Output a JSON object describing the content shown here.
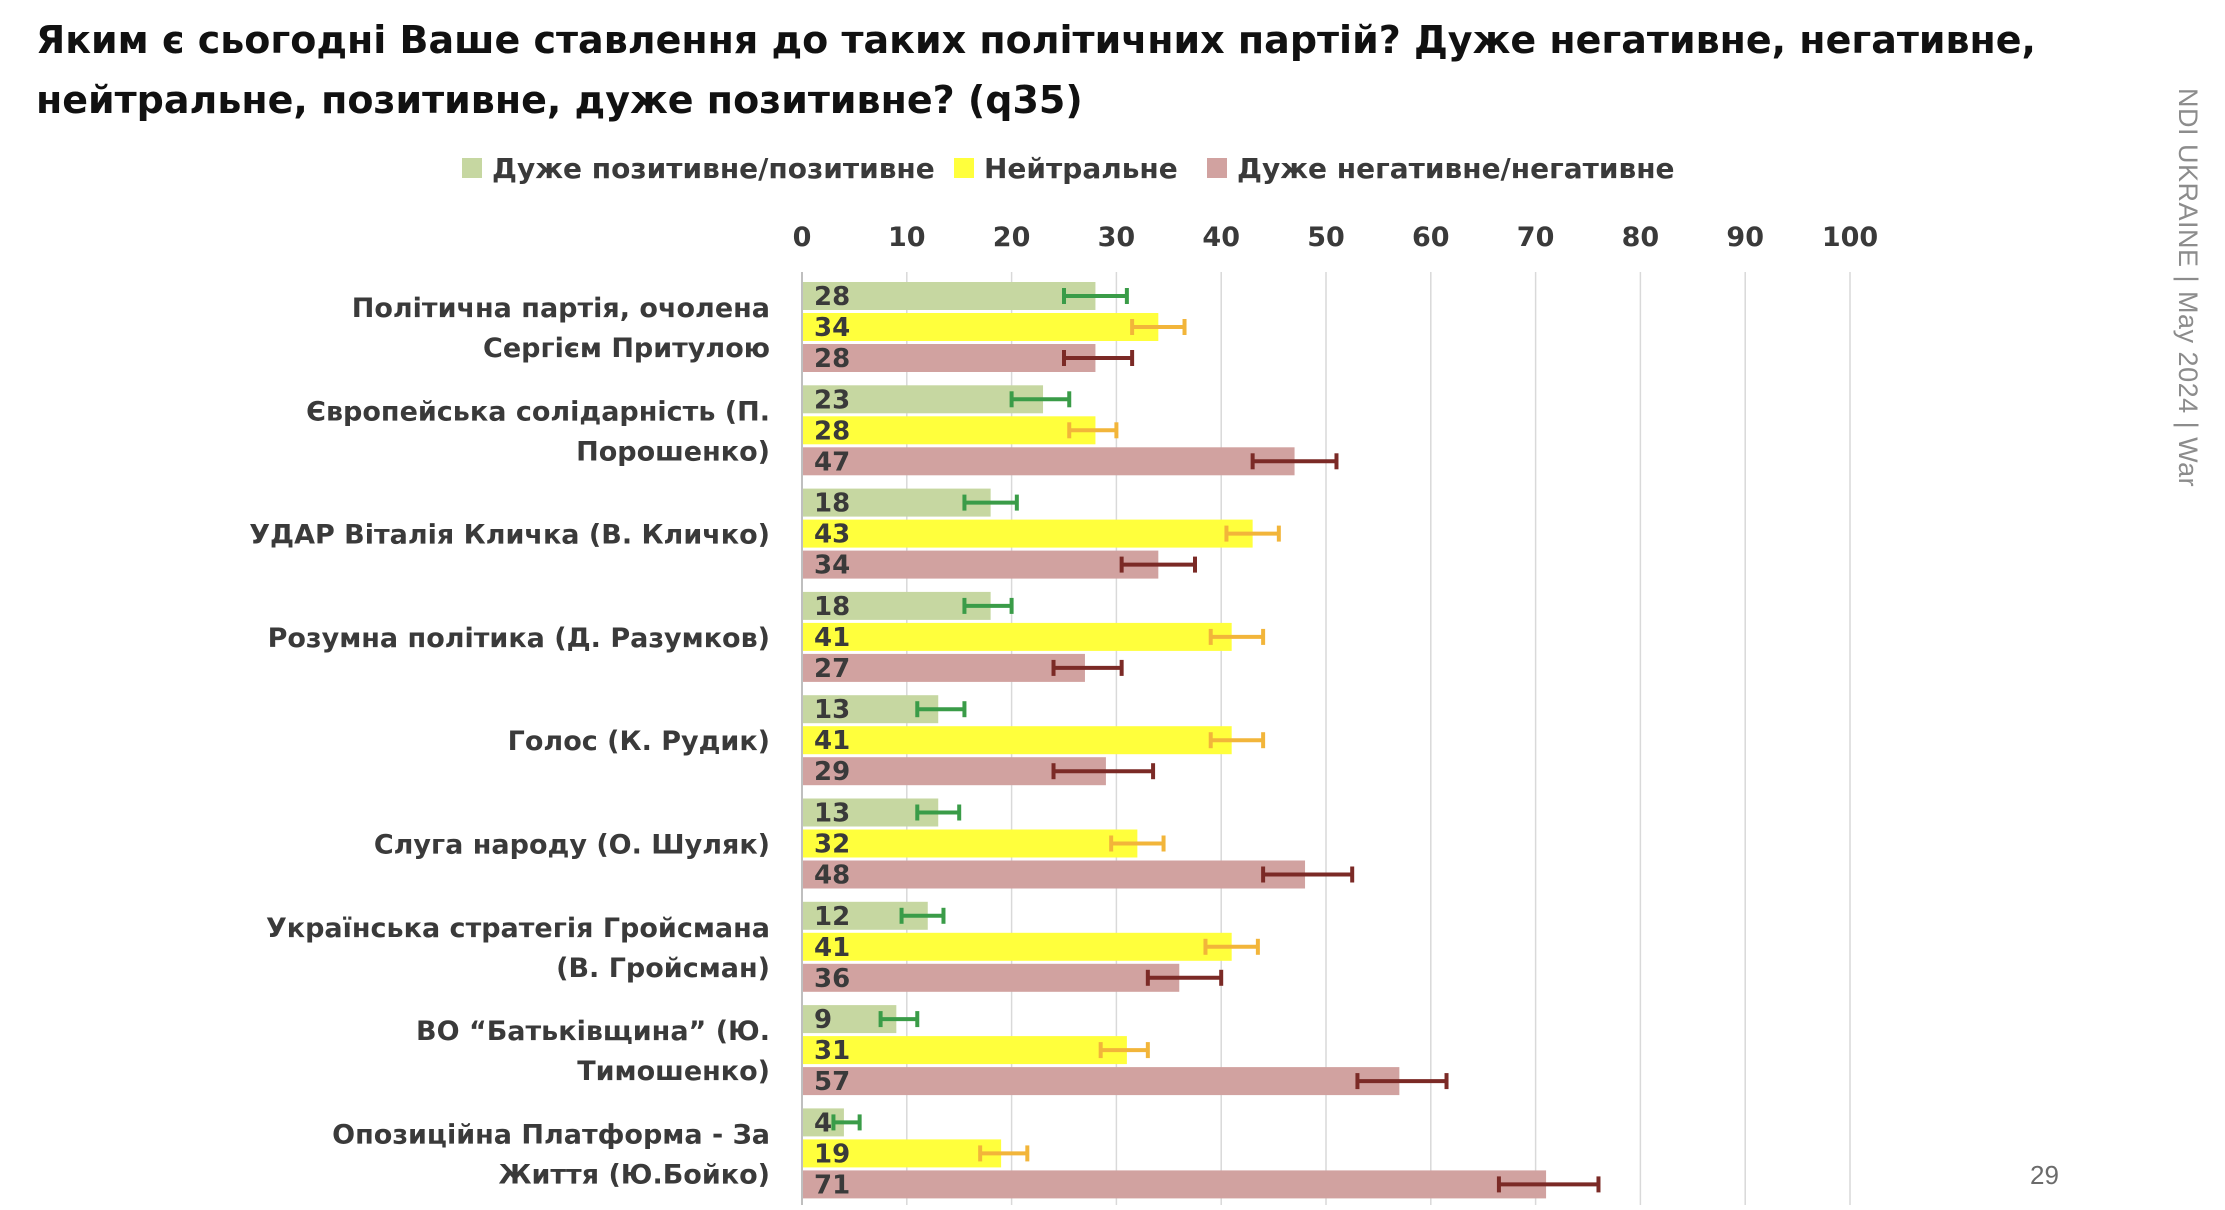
{
  "title_line1": "Яким є сьогодні Ваше ставлення до таких політичних партій? Дуже негативне, негативне,",
  "title_line2": "нейтральне, позитивне, дуже позитивне? (q35)",
  "side_note": "NDI UKRAINE | May 2024 | War",
  "page_number": "29",
  "chart_data": {
    "type": "bar",
    "orientation": "horizontal",
    "title": "",
    "xlabel": "",
    "ylabel": "",
    "xlim": [
      0,
      100
    ],
    "ticks": [
      "0",
      "10",
      "20",
      "30",
      "40",
      "50",
      "60",
      "70",
      "80",
      "90",
      "100"
    ],
    "tick_values": [
      0,
      10,
      20,
      30,
      40,
      50,
      60,
      70,
      80,
      90,
      100
    ],
    "grid": true,
    "legend_position": "top",
    "categories": [
      [
        "Політична партія, очолена",
        "Сергієм Притулою"
      ],
      [
        "Європейська солідарність (П.",
        "Порошенко)"
      ],
      [
        "УДАР Віталія Кличка (В. Кличко)"
      ],
      [
        "Розумна політика (Д. Разумков)"
      ],
      [
        "Голос (К. Рудик)"
      ],
      [
        "Слуга народу (О. Шуляк)"
      ],
      [
        "Українська стратегія Гройсмана",
        "(В. Гройсман)"
      ],
      [
        "ВО “Батьківщина” (Ю.",
        "Тимошенко)"
      ],
      [
        "Опозиційна Платформа - За",
        "Життя (Ю.Бойко)"
      ]
    ],
    "series": [
      {
        "name": "Дуже позитивне/позитивне",
        "color": "#c6d7a1",
        "error_color": "#3a9c48",
        "values": [
          28,
          23,
          18,
          18,
          13,
          13,
          12,
          9,
          4
        ],
        "labels": [
          "28",
          "23",
          "18",
          "18",
          "13",
          "13",
          "12",
          "9",
          "4"
        ],
        "error_ranges": [
          [
            25,
            31
          ],
          [
            20,
            25.5
          ],
          [
            15.5,
            20.5
          ],
          [
            15.5,
            20
          ],
          [
            11,
            15.5
          ],
          [
            11,
            15
          ],
          [
            9.5,
            13.5
          ],
          [
            7.5,
            11
          ],
          [
            3,
            5.5
          ]
        ]
      },
      {
        "name": "Нейтральне",
        "color": "#ffff3c",
        "error_color": "#f2b53a",
        "values": [
          34,
          28,
          43,
          41,
          41,
          32,
          41,
          31,
          19
        ],
        "labels": [
          "34",
          "28",
          "43",
          "41",
          "41",
          "32",
          "41",
          "31",
          "19"
        ],
        "error_ranges": [
          [
            31.5,
            36.5
          ],
          [
            25.5,
            30
          ],
          [
            40.5,
            45.5
          ],
          [
            39,
            44
          ],
          [
            39,
            44
          ],
          [
            29.5,
            34.5
          ],
          [
            38.5,
            43.5
          ],
          [
            28.5,
            33
          ],
          [
            17,
            21.5
          ]
        ]
      },
      {
        "name": "Дуже негативне/негативне",
        "color": "#d1a2a0",
        "error_color": "#7b2a26",
        "values": [
          28,
          47,
          34,
          27,
          29,
          48,
          36,
          57,
          71
        ],
        "labels": [
          "28",
          "47",
          "34",
          "27",
          "29",
          "48",
          "36",
          "57",
          "71"
        ],
        "error_ranges": [
          [
            25,
            31.5
          ],
          [
            43,
            51
          ],
          [
            30.5,
            37.5
          ],
          [
            24,
            30.5
          ],
          [
            24,
            33.5
          ],
          [
            44,
            52.5
          ],
          [
            33,
            40
          ],
          [
            53,
            61.5
          ],
          [
            66.5,
            76
          ]
        ]
      }
    ]
  }
}
